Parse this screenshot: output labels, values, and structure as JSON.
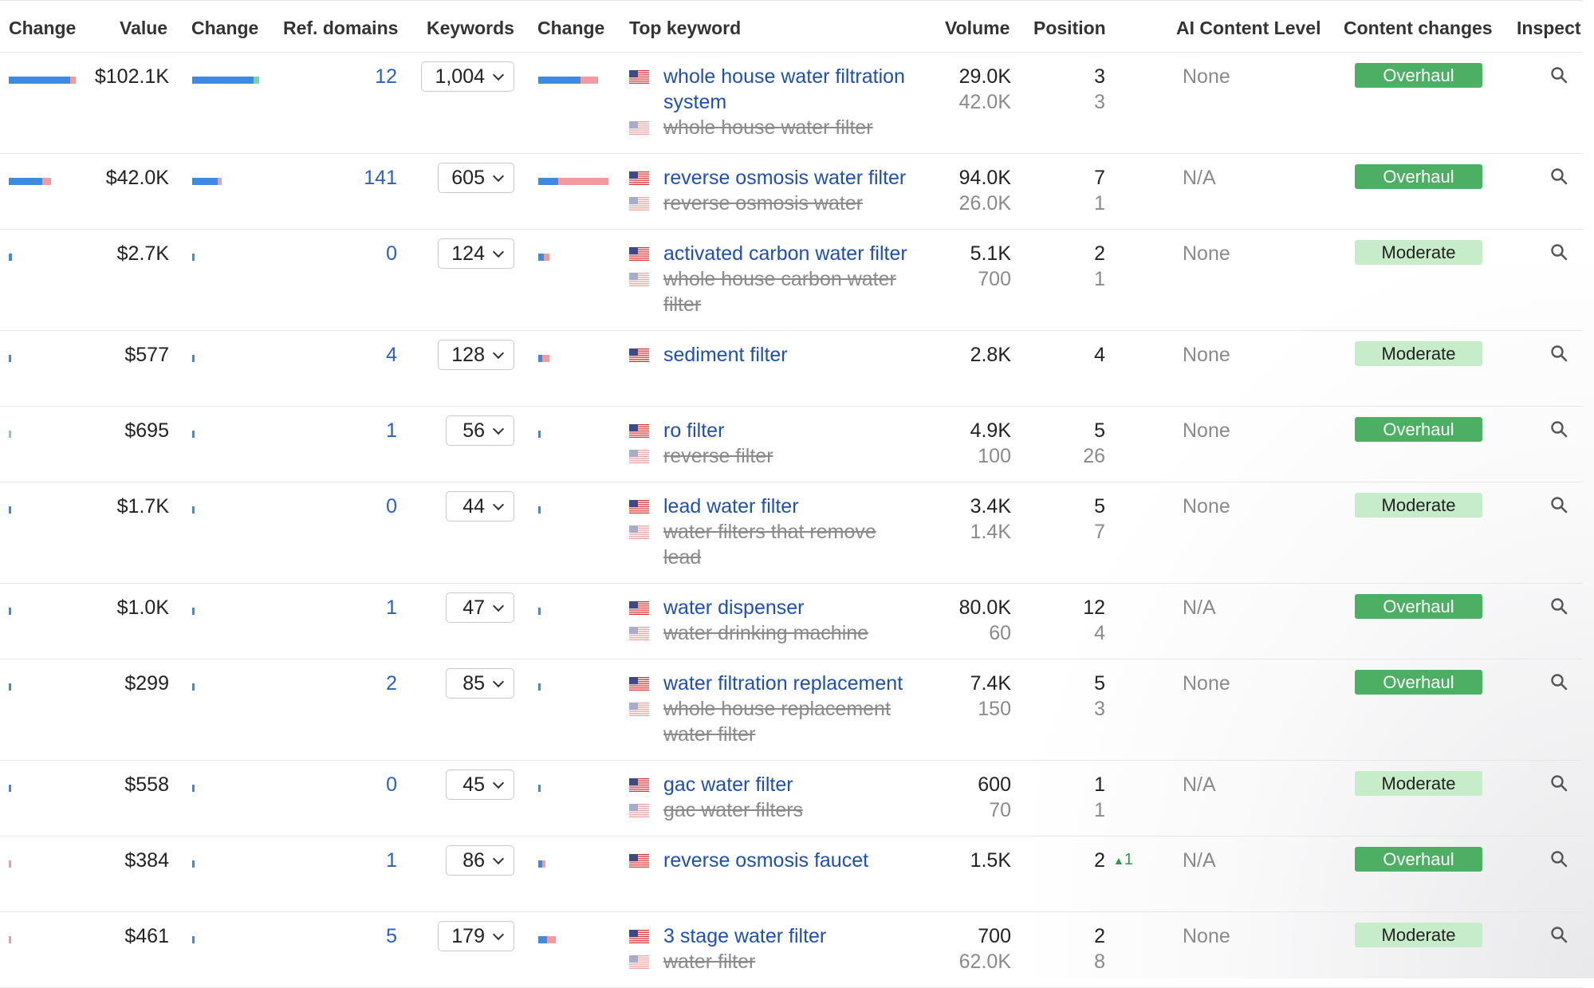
{
  "headers": [
    "Change",
    "Value",
    "Change",
    "Ref. domains",
    "Keywords",
    "Change",
    "Top keyword",
    "Volume",
    "Position",
    "AI Content Level",
    "Content changes",
    "Inspect"
  ],
  "colors": {
    "bar_blue": "#3d8be0",
    "bar_pink": "#f29b9f",
    "bar_green": "#7fd0a8",
    "link": "#1f4fb0",
    "overhaul": "#4caf63",
    "moderate": "#c7ecc9"
  },
  "rows": [
    {
      "value": "$102.1K",
      "ref_domains": "12",
      "keywords": "1,004",
      "kw_main": "whole house water filtration system",
      "kw_sub": "whole house water filter",
      "vol_main": "29.0K",
      "vol_sub": "42.0K",
      "pos_main": "3",
      "pos_sub": "3",
      "ai": "None",
      "content_change": "Overhaul",
      "change1": {
        "blue": 0.88,
        "pink": 0.08
      },
      "change2": {
        "blue": 0.88,
        "green": 0.08
      },
      "change3": {
        "blue": 0.6,
        "pink": 0.25
      }
    },
    {
      "value": "$42.0K",
      "ref_domains": "141",
      "keywords": "605",
      "kw_main": "reverse osmosis water filter",
      "kw_sub": "reverse osmosis water",
      "vol_main": "94.0K",
      "vol_sub": "26.0K",
      "pos_main": "7",
      "pos_sub": "1",
      "ai": "N/A",
      "content_change": "Overhaul",
      "change1": {
        "blue": 0.48,
        "pink": 0.12
      },
      "change2": {
        "blue": 0.36,
        "pink": 0.06
      },
      "change3": {
        "blue": 0.28,
        "pink": 0.72
      }
    },
    {
      "value": "$2.7K",
      "ref_domains": "0",
      "keywords": "124",
      "kw_main": "activated carbon water filter",
      "kw_sub": "whole house carbon water filter",
      "vol_main": "5.1K",
      "vol_sub": "700",
      "pos_main": "2",
      "pos_sub": "1",
      "ai": "None",
      "content_change": "Moderate",
      "change1": {
        "blue": 0.04
      },
      "change2": {
        "blue": 0.03
      },
      "change3": {
        "blue": 0.08,
        "pink": 0.08
      }
    },
    {
      "value": "$577",
      "ref_domains": "4",
      "keywords": "128",
      "kw_main": "sediment filter",
      "kw_sub": "",
      "vol_main": "2.8K",
      "vol_sub": "",
      "pos_main": "4",
      "pos_sub": "",
      "ai": "None",
      "content_change": "Moderate",
      "change1": {
        "blue": 0.02
      },
      "change2": {
        "blue": 0.03
      },
      "change3": {
        "blue": 0.06,
        "pink": 0.1
      }
    },
    {
      "value": "$695",
      "ref_domains": "1",
      "keywords": "56",
      "kw_main": "ro filter",
      "kw_sub": "reverse filter",
      "vol_main": "4.9K",
      "vol_sub": "100",
      "pos_main": "5",
      "pos_sub": "26",
      "ai": "None",
      "content_change": "Overhaul",
      "change1": {
        "green": 0.02
      },
      "change2": {
        "blue": 0.03
      },
      "change3": {
        "blue": 0.03
      }
    },
    {
      "value": "$1.7K",
      "ref_domains": "0",
      "keywords": "44",
      "kw_main": "lead water filter",
      "kw_sub": "water filters that remove lead",
      "vol_main": "3.4K",
      "vol_sub": "1.4K",
      "pos_main": "5",
      "pos_sub": "7",
      "ai": "None",
      "content_change": "Moderate",
      "change1": {
        "blue": 0.03
      },
      "change2": {
        "blue": 0.03
      },
      "change3": {
        "blue": 0.03
      }
    },
    {
      "value": "$1.0K",
      "ref_domains": "1",
      "keywords": "47",
      "kw_main": "water dispenser",
      "kw_sub": "water drinking machine",
      "vol_main": "80.0K",
      "vol_sub": "60",
      "pos_main": "12",
      "pos_sub": "4",
      "ai": "N/A",
      "content_change": "Overhaul",
      "change1": {
        "blue": 0.03
      },
      "change2": {
        "blue": 0.03
      },
      "change3": {
        "blue": 0.03
      }
    },
    {
      "value": "$299",
      "ref_domains": "2",
      "keywords": "85",
      "kw_main": "water filtration replacement",
      "kw_sub": "whole house replacement water filter",
      "vol_main": "7.4K",
      "vol_sub": "150",
      "pos_main": "5",
      "pos_sub": "3",
      "ai": "None",
      "content_change": "Overhaul",
      "change1": {
        "blue": 0.03
      },
      "change2": {
        "blue": 0.03
      },
      "change3": {
        "blue": 0.03
      }
    },
    {
      "value": "$558",
      "ref_domains": "0",
      "keywords": "45",
      "kw_main": "gac water filter",
      "kw_sub": "gac water filters",
      "vol_main": "600",
      "vol_sub": "70",
      "pos_main": "1",
      "pos_sub": "1",
      "ai": "N/A",
      "content_change": "Moderate",
      "change1": {
        "blue": 0.03
      },
      "change2": {
        "blue": 0.03
      },
      "change3": {
        "blue": 0.03
      }
    },
    {
      "value": "$384",
      "ref_domains": "1",
      "keywords": "86",
      "kw_main": "reverse osmosis faucet",
      "kw_sub": "",
      "vol_main": "1.5K",
      "vol_sub": "",
      "pos_main": "2",
      "pos_sub": "",
      "pos_delta": "1",
      "ai": "N/A",
      "content_change": "Overhaul",
      "change1": {
        "pink": 0.02
      },
      "change2": {
        "blue": 0.03
      },
      "change3": {
        "blue": 0.06,
        "pink": 0.04
      }
    },
    {
      "value": "$461",
      "ref_domains": "5",
      "keywords": "179",
      "kw_main": "3 stage water filter",
      "kw_sub": "water filter",
      "vol_main": "700",
      "vol_sub": "62.0K",
      "pos_main": "2",
      "pos_sub": "8",
      "ai": "None",
      "content_change": "Moderate",
      "change1": {
        "pink": 0.02
      },
      "change2": {
        "blue": 0.03
      },
      "change3": {
        "blue": 0.12,
        "pink": 0.12
      }
    }
  ]
}
